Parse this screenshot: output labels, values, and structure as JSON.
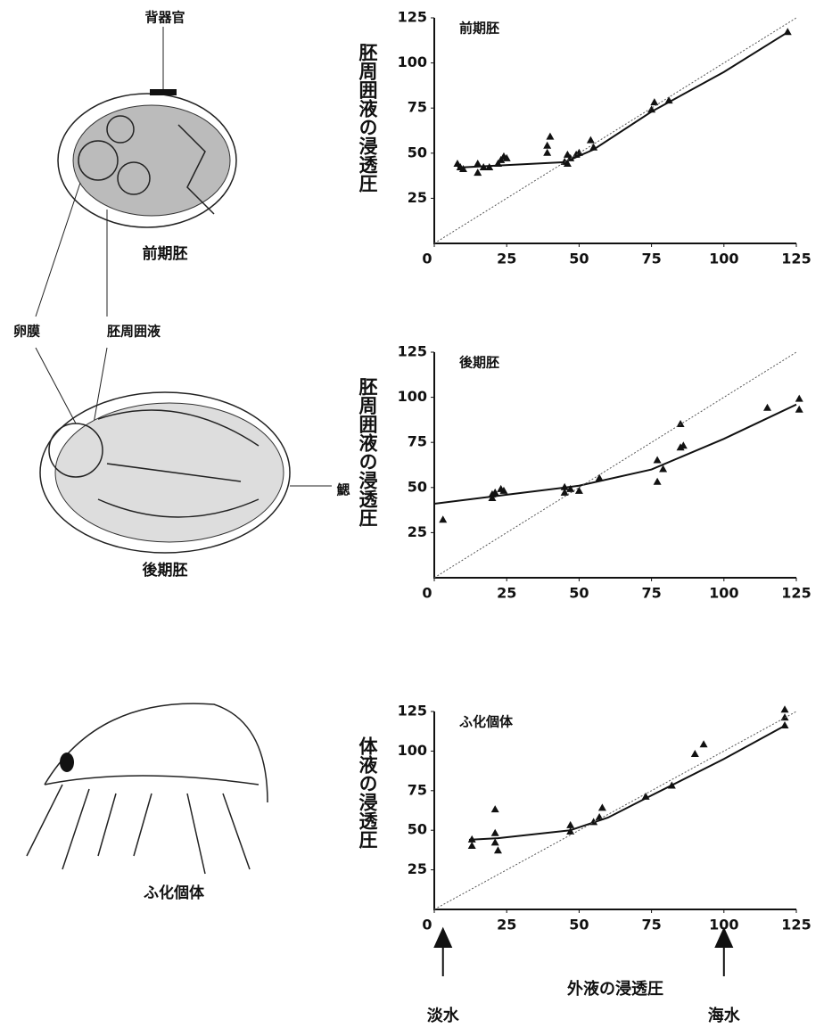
{
  "illustrations": {
    "labels": [
      "背器官",
      "前期胚",
      "卵膜",
      "胚周囲液",
      "鰓",
      "後期胚",
      "ふ化個体"
    ]
  },
  "chart_data": [
    {
      "type": "scatter",
      "title": "前期胚",
      "ylabel": "胚周囲液の浸透圧",
      "xlim": [
        0,
        125
      ],
      "ylim": [
        0,
        125
      ],
      "xticks": [
        0,
        25,
        50,
        75,
        100,
        125
      ],
      "yticks": [
        25,
        50,
        75,
        100,
        125
      ],
      "series": [
        {
          "color": "#111",
          "style": "points",
          "x": [
            8,
            9,
            10,
            15,
            15,
            17,
            19,
            22,
            23,
            24,
            25,
            39,
            40,
            39,
            45,
            46,
            46,
            47,
            49,
            50,
            54,
            55,
            75,
            76,
            81,
            122
          ],
          "values": [
            44,
            42,
            41,
            44,
            39,
            42,
            42,
            44,
            46,
            48,
            47,
            54,
            59,
            50,
            45,
            44,
            49,
            47,
            49,
            50,
            57,
            53,
            74,
            78,
            79,
            117
          ]
        },
        {
          "color": "#111",
          "style": "line",
          "x": [
            8,
            20,
            45,
            55,
            75,
            100,
            122
          ],
          "values": [
            42,
            43,
            45,
            52,
            73,
            95,
            117
          ]
        },
        {
          "color": "#555",
          "style": "dotted",
          "x": [
            0,
            125
          ],
          "values": [
            0,
            125
          ]
        }
      ]
    },
    {
      "type": "scatter",
      "title": "後期胚",
      "ylabel": "胚周囲液の浸透圧",
      "xlim": [
        0,
        125
      ],
      "ylim": [
        0,
        125
      ],
      "xticks": [
        0,
        25,
        50,
        75,
        100,
        125
      ],
      "yticks": [
        25,
        50,
        75,
        100,
        125
      ],
      "series": [
        {
          "color": "#111",
          "style": "points",
          "x": [
            3,
            20,
            20,
            21,
            23,
            24,
            45,
            45,
            47,
            50,
            57,
            77,
            77,
            79,
            85,
            85,
            86,
            115,
            126,
            126
          ],
          "values": [
            32,
            44,
            46,
            47,
            49,
            48,
            50,
            47,
            49,
            48,
            55,
            65,
            53,
            60,
            85,
            72,
            73,
            94,
            99,
            93
          ]
        },
        {
          "color": "#111",
          "style": "line",
          "x": [
            0,
            25,
            50,
            75,
            100,
            125
          ],
          "values": [
            41,
            46,
            51,
            60,
            77,
            96
          ]
        },
        {
          "color": "#555",
          "style": "dotted",
          "x": [
            0,
            125
          ],
          "values": [
            0,
            125
          ]
        }
      ]
    },
    {
      "type": "scatter",
      "title": "ふ化個体",
      "ylabel": "体液の浸透圧",
      "xlabel": "外液の浸透圧",
      "xlim": [
        0,
        125
      ],
      "ylim": [
        0,
        125
      ],
      "xticks": [
        0,
        25,
        50,
        75,
        100,
        125
      ],
      "yticks": [
        25,
        50,
        75,
        100,
        125
      ],
      "annotations": [
        {
          "text": "淡水",
          "x": 3
        },
        {
          "text": "海水",
          "x": 100
        }
      ],
      "series": [
        {
          "color": "#111",
          "style": "points",
          "x": [
            13,
            13,
            21,
            21,
            21,
            22,
            47,
            47,
            55,
            57,
            58,
            73,
            82,
            90,
            93,
            121,
            121,
            121
          ],
          "values": [
            44,
            40,
            63,
            48,
            42,
            37,
            53,
            49,
            55,
            58,
            64,
            71,
            78,
            98,
            104,
            126,
            121,
            116
          ]
        },
        {
          "color": "#111",
          "style": "line",
          "x": [
            12,
            22,
            47,
            60,
            75,
            100,
            121
          ],
          "values": [
            44,
            45,
            50,
            58,
            72,
            95,
            116
          ]
        },
        {
          "color": "#555",
          "style": "dotted",
          "x": [
            0,
            125
          ],
          "values": [
            0,
            125
          ]
        }
      ]
    }
  ]
}
